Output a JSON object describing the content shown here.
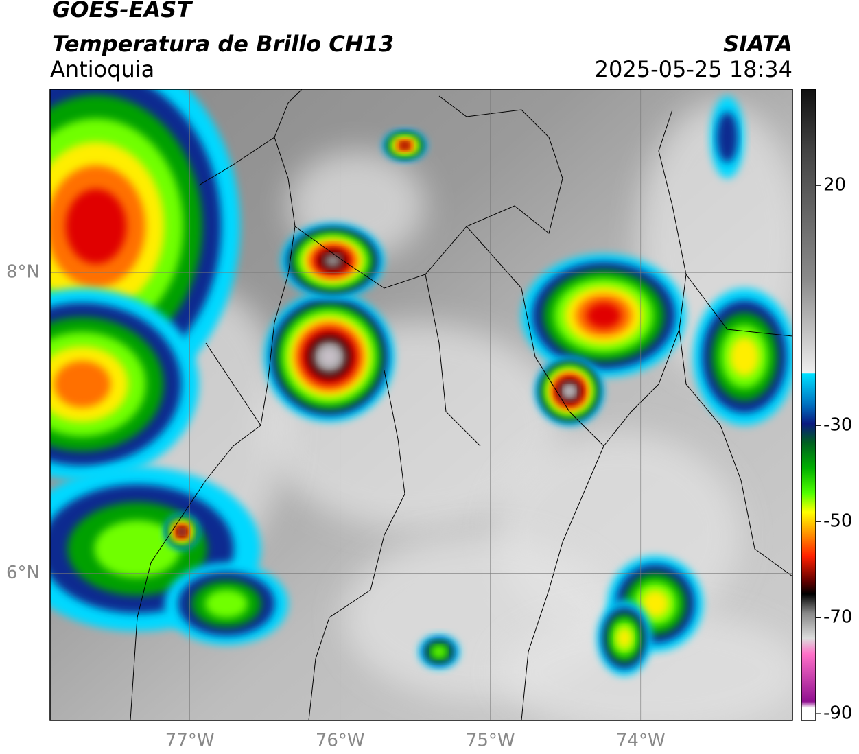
{
  "header": {
    "title": "GOES-EAST",
    "subtitle": "Temperatura de Brillo CH13",
    "region": "Antioquia",
    "source": "SIATA",
    "datetime": "2025-05-25 18:34"
  },
  "map": {
    "xlim": [
      -77.93,
      -72.99
    ],
    "ylim": [
      5.02,
      9.22
    ],
    "xticks": [
      {
        "value": -77,
        "label": "77°W"
      },
      {
        "value": -76,
        "label": "76°W"
      },
      {
        "value": -75,
        "label": "75°W"
      },
      {
        "value": -74,
        "label": "74°W"
      }
    ],
    "yticks": [
      {
        "value": 8,
        "label": "8°N"
      },
      {
        "value": 6,
        "label": "6°N"
      }
    ]
  },
  "colorbar": {
    "lim": [
      -91.4,
      40
    ],
    "ticks": [
      20,
      -30,
      -50,
      -70,
      -90
    ]
  }
}
